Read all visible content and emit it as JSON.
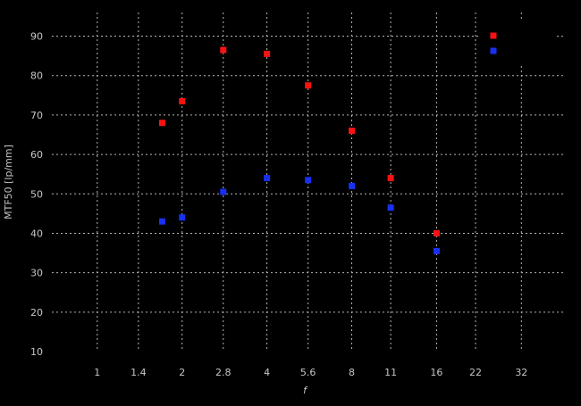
{
  "figure": {
    "background_color": "#000000",
    "grid_color": "#b5b5b5",
    "text_color": "#c6c6c6"
  },
  "chart_data": {
    "type": "scatter",
    "title": "",
    "xlabel": "f",
    "ylabel": "MTF50 [lp/mm]",
    "x_scale": "log2",
    "x_tick_labels": [
      "1",
      "1.4",
      "2",
      "2.8",
      "4",
      "5.6",
      "8",
      "11",
      "16",
      "22",
      "32"
    ],
    "x_tick_values": [
      1,
      1.4,
      2,
      2.8,
      4,
      5.6,
      8,
      11,
      16,
      22,
      32
    ],
    "y_tick_values": [
      10,
      20,
      30,
      40,
      50,
      60,
      70,
      80,
      90
    ],
    "xlim": [
      0.69,
      45
    ],
    "ylim": [
      10,
      96
    ],
    "grid": "dashed",
    "marker": "square",
    "x": [
      1.7,
      2,
      2.8,
      4,
      5.6,
      8,
      11,
      16
    ],
    "series": [
      {
        "name": "red-series",
        "color": "#fa1212",
        "values": [
          68,
          73.5,
          86.5,
          85.5,
          77.5,
          66,
          54,
          40
        ]
      },
      {
        "name": "blue-series",
        "color": "#1830f0",
        "values": [
          43,
          44,
          50.5,
          54,
          53.5,
          52,
          46.5,
          35.5
        ]
      }
    ],
    "legend": {
      "position": "top-right-inside",
      "labels_visible": false,
      "entries": [
        {
          "series": "red-series",
          "color": "#fa1212",
          "label": ""
        },
        {
          "series": "blue-series",
          "color": "#1830f0",
          "label": ""
        }
      ]
    }
  }
}
